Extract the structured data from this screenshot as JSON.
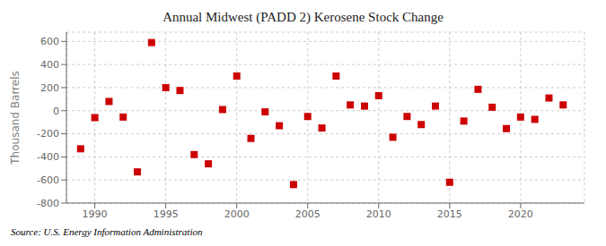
{
  "chart_data": {
    "type": "scatter",
    "title": "Annual Midwest (PADD 2) Kerosene Stock Change",
    "ylabel": "Thousand Barrels",
    "annotation": "Source: U.S. Energy Information Administration",
    "x": [
      1989,
      1990,
      1991,
      1992,
      1993,
      1994,
      1995,
      1996,
      1997,
      1998,
      1999,
      2000,
      2001,
      2002,
      2003,
      2004,
      2005,
      2006,
      2007,
      2008,
      2009,
      2010,
      2011,
      2012,
      2013,
      2014,
      2015,
      2016,
      2017,
      2018,
      2019,
      2020,
      2021,
      2022,
      2023
    ],
    "values": [
      -330,
      -60,
      80,
      -55,
      -530,
      590,
      200,
      175,
      -380,
      -460,
      10,
      300,
      -240,
      -10,
      -130,
      -640,
      -50,
      -150,
      300,
      50,
      40,
      130,
      -230,
      -50,
      -120,
      40,
      -620,
      -90,
      185,
      30,
      -155,
      -55,
      -75,
      110,
      50
    ],
    "color": "#cc0000",
    "marker": "square",
    "grid": true,
    "xlim": [
      1988.0,
      2024.5
    ],
    "xticks": [
      1990,
      1995,
      2000,
      2005,
      2010,
      2015,
      2020
    ],
    "ylim": [
      -800,
      680
    ],
    "yticks": [
      -800,
      -600,
      -400,
      -200,
      0,
      200,
      400,
      600
    ]
  }
}
